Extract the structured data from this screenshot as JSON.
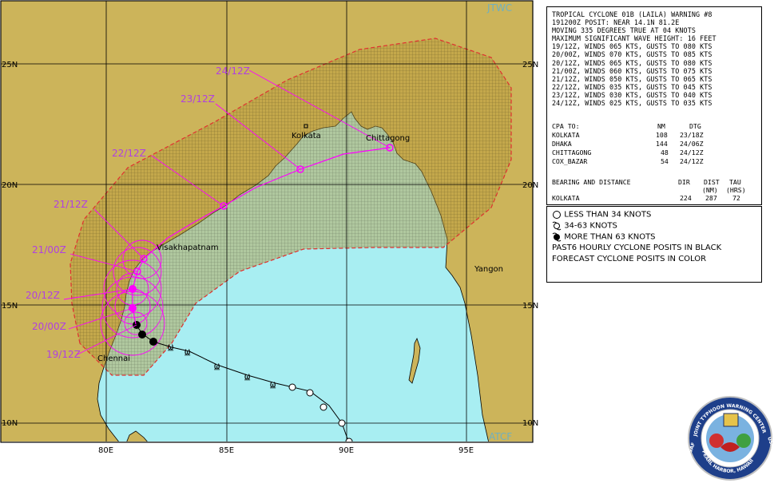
{
  "map": {
    "source_label": "JTWC",
    "tool_label": "ATCF",
    "lat_labels": [
      {
        "text": "25N",
        "lat": 25
      },
      {
        "text": "20N",
        "lat": 20
      },
      {
        "text": "15N",
        "lat": 15
      },
      {
        "text": "10N",
        "lat": 10
      }
    ],
    "lon_labels": [
      {
        "text": "80E",
        "lon": 80
      },
      {
        "text": "85E",
        "lon": 85
      },
      {
        "text": "90E",
        "lon": 90
      },
      {
        "text": "95E",
        "lon": 95
      }
    ],
    "places": [
      {
        "name": "Kolkata"
      },
      {
        "name": "Chittagong"
      },
      {
        "name": "Visakhapatnam"
      },
      {
        "name": "Yangon"
      },
      {
        "name": "Chennai"
      }
    ],
    "forecast_labels": [
      "24/12Z",
      "23/12Z",
      "22/12Z",
      "21/12Z",
      "21/00Z",
      "20/12Z",
      "20/00Z",
      "19/12Z"
    ],
    "colors": {
      "sea": "#a8eef2",
      "land": "#ccb45a",
      "danger_area": "#ba9a3a",
      "danger_border": "#e03030",
      "forecast": "#ff00ff",
      "labels": "#b040e0"
    }
  },
  "warning": {
    "lines": [
      "TROPICAL CYCLONE 01B (LAILA) WARNING #8",
      "191200Z POSIT: NEAR 14.1N 81.2E",
      "MOVING 335 DEGREES TRUE AT 04 KNOTS",
      "MAXIMUM SIGNIFICANT WAVE HEIGHT: 16 FEET",
      "19/12Z, WINDS 065 KTS, GUSTS TO 080 KTS",
      "20/00Z, WINDS 070 KTS, GUSTS TO 085 KTS",
      "20/12Z, WINDS 065 KTS, GUSTS TO 080 KTS",
      "21/00Z, WINDS 060 KTS, GUSTS TO 075 KTS",
      "21/12Z, WINDS 050 KTS, GUSTS TO 065 KTS",
      "22/12Z, WINDS 035 KTS, GUSTS TO 045 KTS",
      "23/12Z, WINDS 030 KTS, GUSTS TO 040 KTS",
      "24/12Z, WINDS 025 KTS, GUSTS TO 035 KTS"
    ],
    "cpa_header": {
      "label": "CPA TO:",
      "nm": "NM",
      "dtg": "DTG"
    },
    "cpa_rows": [
      {
        "place": "KOLKATA",
        "nm": "108",
        "dtg": "23/18Z"
      },
      {
        "place": "DHAKA",
        "nm": "144",
        "dtg": "24/06Z"
      },
      {
        "place": "CHITTAGONG",
        "nm": "48",
        "dtg": "24/12Z"
      },
      {
        "place": "COX_BAZAR",
        "nm": "54",
        "dtg": "24/12Z"
      }
    ],
    "bearing_header": {
      "label": "BEARING AND DISTANCE",
      "dir": "DIR",
      "dist": "DIST",
      "tau": "TAU",
      "dist_unit": "(NM)",
      "tau_unit": "(HRS)"
    },
    "bearing_row": {
      "place": "KOLKATA",
      "dir": "224",
      "dist": "287",
      "tau": "72"
    }
  },
  "legend": {
    "items": [
      {
        "text": "LESS THAN 34 KNOTS",
        "icon": "open-circle-icon"
      },
      {
        "text": "34-63 KNOTS",
        "icon": "tropical-storm-symbol-icon"
      },
      {
        "text": "MORE THAN 63 KNOTS",
        "icon": "filled-hurricane-symbol-icon"
      },
      {
        "text": "PAST6 HOURLY CYCLONE POSITS IN BLACK",
        "icon": ""
      },
      {
        "text": "FORECAST CYCLONE POSITS IN COLOR",
        "icon": ""
      }
    ]
  },
  "seal": {
    "ring_text": "JOINT TYPHOON WARNING CENTER",
    "left_text": "USAF",
    "right_text": "USN",
    "bottom_text": "PEARL HARBOR, HAWAII"
  }
}
